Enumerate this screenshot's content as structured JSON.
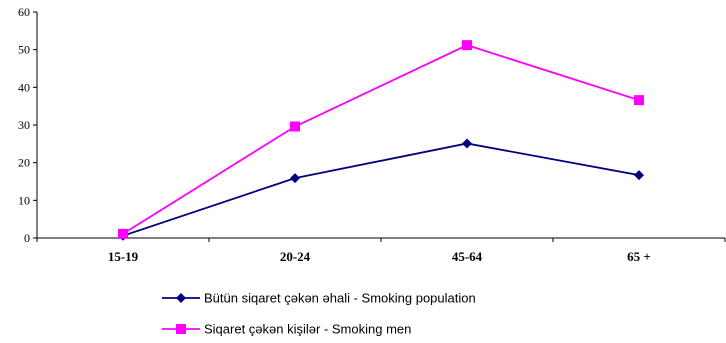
{
  "chart_data": {
    "type": "line",
    "categories": [
      "15-19",
      "20-24",
      "45-64",
      "65 +"
    ],
    "ylim": [
      0,
      60
    ],
    "yticks": [
      0,
      10,
      20,
      30,
      40,
      50,
      60
    ],
    "grid": false,
    "legend_position": "bottom",
    "series": [
      {
        "name": "Bütün siqaret çəkən əhali - Smoking population",
        "values": [
          0.6,
          15.9,
          25.1,
          16.7
        ],
        "color": "#000080",
        "marker": "diamond"
      },
      {
        "name": "Siqaret çəkən kişilər - Smoking men",
        "values": [
          1.1,
          29.6,
          51.2,
          36.6
        ],
        "color": "#FF00FF",
        "marker": "square"
      }
    ]
  }
}
